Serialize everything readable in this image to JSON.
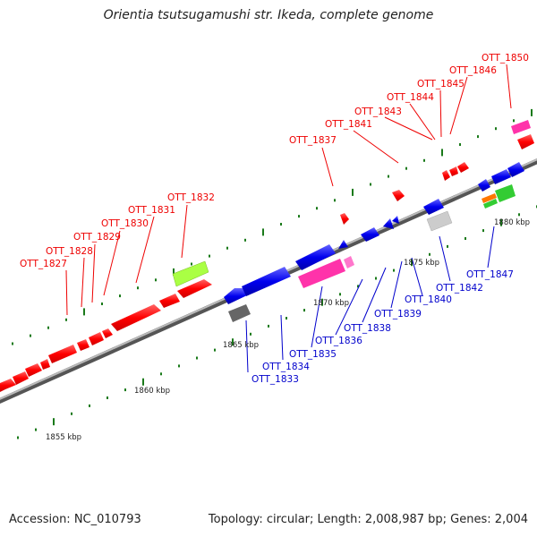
{
  "title": "Orientia tsutsugamushi str. Ikeda, complete genome",
  "accession": "Accession: NC_010793",
  "summary": "Topology: circular; Length: 2,008,987 bp; Genes: 2,004",
  "colors": {
    "forward": "#ff0000",
    "reverse": "#0000ee",
    "backbone": "#888888",
    "tick": "#1a7a1a",
    "pink": "#ff33aa",
    "lime": "#aaff44",
    "grey_dark": "#666666",
    "grey_light": "#cccccc",
    "orange": "#ff7700",
    "green": "#33cc33"
  },
  "scale_labels": [
    "1855 kbp",
    "1860 kbp",
    "1865 kbp",
    "1870 kbp",
    "1875 kbp",
    "1880 kbp"
  ],
  "forward_labels": [
    "OTT_1827",
    "OTT_1828",
    "OTT_1829",
    "OTT_1830",
    "OTT_1831",
    "OTT_1832",
    "OTT_1837",
    "OTT_1841",
    "OTT_1843",
    "OTT_1844",
    "OTT_1845",
    "OTT_1846",
    "OTT_1850"
  ],
  "reverse_labels": [
    "OTT_1833",
    "OTT_1834",
    "OTT_1835",
    "OTT_1836",
    "OTT_1838",
    "OTT_1839",
    "OTT_1840",
    "OTT_1842",
    "OTT_1847"
  ]
}
